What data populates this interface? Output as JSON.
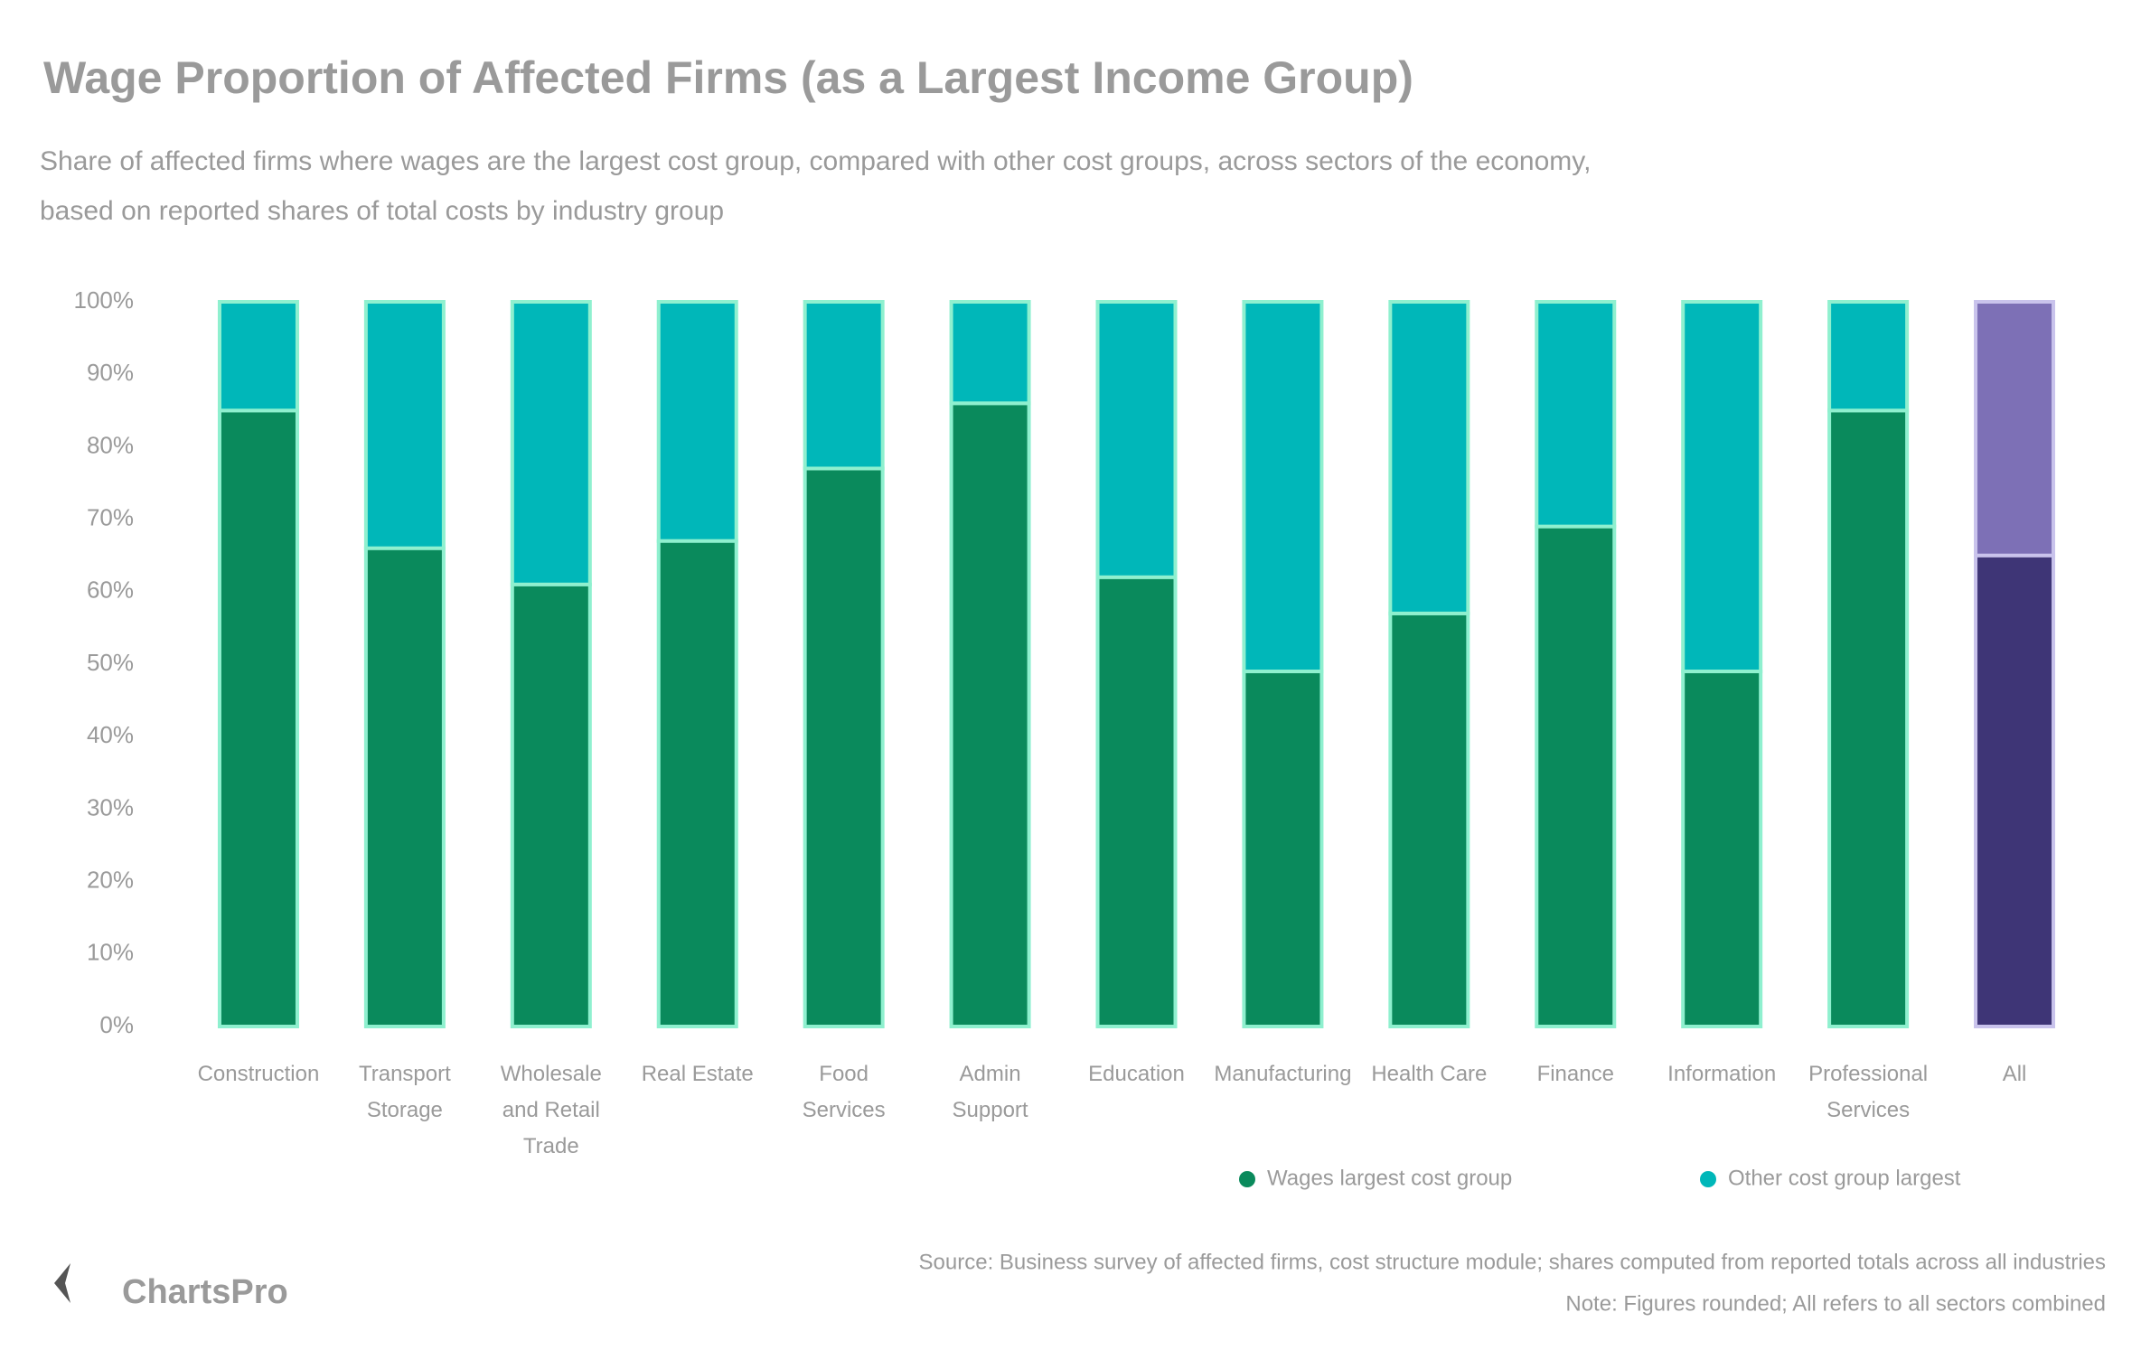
{
  "chart_data": {
    "type": "stacked_bar",
    "title": "Wage Proportion of Affected Firms (as a Largest Income Group)",
    "subtitle": [
      "Share of affected firms where wages are the largest cost group, compared with other cost groups, across sectors of the economy,",
      "based on reported shares of total costs by industry group"
    ],
    "categories": [
      "Construction",
      "Transport Storage",
      "Wholesale and Retail Trade",
      "Real Estate",
      "Food Services",
      "Admin Support",
      "Education",
      "Manufacturing",
      "Health Care",
      "Finance",
      "Information",
      "Professional Services",
      "All"
    ],
    "series": [
      {
        "name": "Wages largest cost group",
        "color": "#0a8a5c",
        "point_colors": [
          null,
          null,
          null,
          null,
          null,
          null,
          null,
          null,
          null,
          null,
          null,
          null,
          "#3e3576"
        ],
        "values": [
          85,
          66,
          61,
          67,
          77,
          86,
          62,
          49,
          57,
          69,
          49,
          85,
          65
        ]
      },
      {
        "name": "Other cost group largest",
        "color": "#00b7b9",
        "point_colors": [
          null,
          null,
          null,
          null,
          null,
          null,
          null,
          null,
          null,
          null,
          null,
          null,
          "#7d70b6"
        ],
        "values": [
          15,
          34,
          39,
          33,
          23,
          14,
          38,
          51,
          43,
          31,
          51,
          15,
          35
        ]
      }
    ],
    "ylim": [
      0,
      100
    ],
    "yticks": [
      {
        "value": 0,
        "label": "0%"
      },
      {
        "value": 10,
        "label": "10%"
      },
      {
        "value": 20,
        "label": "20%"
      },
      {
        "value": 30,
        "label": "30%"
      },
      {
        "value": 40,
        "label": "40%"
      },
      {
        "value": 50,
        "label": "50%"
      },
      {
        "value": 60,
        "label": "60%"
      },
      {
        "value": 70,
        "label": "70%"
      },
      {
        "value": 80,
        "label": "80%"
      },
      {
        "value": 90,
        "label": "90%"
      },
      {
        "value": 100,
        "label": "100%"
      }
    ],
    "legend": "bottom-right",
    "source": [
      "Source: Business survey of affected firms, cost structure module; shares computed from reported totals across all industries",
      "Note: Figures rounded; All refers to all sectors combined"
    ],
    "logo": "ChartsPro"
  }
}
